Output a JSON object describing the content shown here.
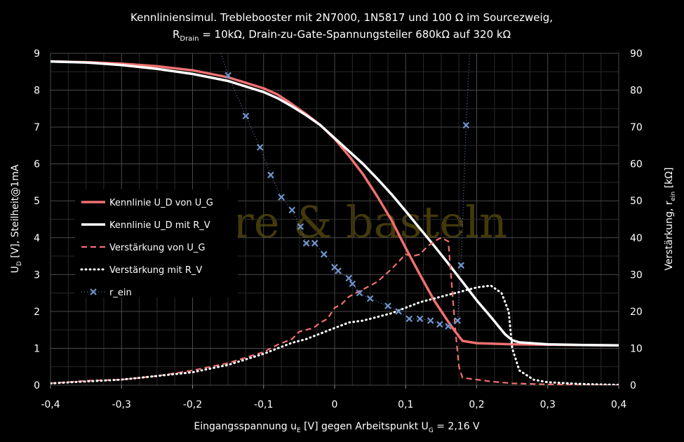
{
  "chart_data": {
    "type": "line",
    "title_line1": "Kennliniensimul. Treblebooster mit 2N7000, 1N5817 und 100 Ω im Sourcezweig,",
    "title_line2_pre": "R",
    "title_line2_sub": "Drain",
    "title_line2_post": " = 10kΩ, Drain-zu-Gate-Spannungsteiler 680kΩ auf 320 kΩ",
    "xlabel_pre": "Eingangsspannung u",
    "xlabel_sub1": "E",
    "xlabel_mid": " [V] gegen Arbeitspunkt U",
    "xlabel_sub2": "G",
    "xlabel_post": " = 2,16 V",
    "ylabel_left_pre": "U",
    "ylabel_left_sub": "D",
    "ylabel_left_post": " [V], Steilheit@1mA",
    "ylabel_right_pre": "Verstärkung, r",
    "ylabel_right_sub": "ein",
    "ylabel_right_post": " [kΩ]",
    "watermark": "gitarre & basteln",
    "xlim": [
      -0.4,
      0.4
    ],
    "ylim_left": [
      0,
      9
    ],
    "ylim_right": [
      0,
      90
    ],
    "x_ticks": [
      "-0,4",
      "-0,3",
      "-0,2",
      "-0,1",
      "0",
      "0,1",
      "0,2",
      "0,3",
      "0,4"
    ],
    "y_left_ticks": [
      "0",
      "1",
      "2",
      "3",
      "4",
      "5",
      "6",
      "7",
      "8",
      "9"
    ],
    "y_right_ticks": [
      "0",
      "10",
      "20",
      "30",
      "40",
      "50",
      "60",
      "70",
      "80",
      "90"
    ],
    "grid": true,
    "legend_position": "left-middle",
    "series": [
      {
        "name": "Kennlinie U_D von U_G",
        "axis": "left",
        "color": "#f07070",
        "style": "solid",
        "x": [
          -0.4,
          -0.35,
          -0.3,
          -0.25,
          -0.2,
          -0.15,
          -0.1,
          -0.08,
          -0.06,
          -0.04,
          -0.02,
          0,
          0.02,
          0.04,
          0.06,
          0.08,
          0.1,
          0.12,
          0.14,
          0.16,
          0.17,
          0.18,
          0.2,
          0.25,
          0.3,
          0.35,
          0.4
        ],
        "y": [
          8.78,
          8.76,
          8.72,
          8.65,
          8.54,
          8.35,
          8.05,
          7.88,
          7.62,
          7.35,
          7.05,
          6.68,
          6.22,
          5.72,
          5.12,
          4.48,
          3.72,
          3.0,
          2.3,
          1.72,
          1.45,
          1.2,
          1.14,
          1.11,
          1.1,
          1.09,
          1.08
        ]
      },
      {
        "name": "Kennlinie U_D mit R_V",
        "axis": "left",
        "color": "#ffffff",
        "style": "solid",
        "x": [
          -0.4,
          -0.35,
          -0.3,
          -0.25,
          -0.2,
          -0.15,
          -0.1,
          -0.08,
          -0.06,
          -0.04,
          -0.02,
          0,
          0.02,
          0.04,
          0.06,
          0.08,
          0.1,
          0.12,
          0.14,
          0.16,
          0.18,
          0.2,
          0.22,
          0.24,
          0.25,
          0.26,
          0.3,
          0.35,
          0.4
        ],
        "y": [
          8.78,
          8.75,
          8.68,
          8.58,
          8.44,
          8.25,
          7.95,
          7.78,
          7.56,
          7.32,
          7.05,
          6.7,
          6.35,
          6.0,
          5.6,
          5.18,
          4.72,
          4.25,
          3.78,
          3.3,
          2.8,
          2.3,
          1.85,
          1.38,
          1.22,
          1.16,
          1.11,
          1.09,
          1.08
        ]
      },
      {
        "name": "Verstärkung von U_G",
        "axis": "right",
        "color": "#f07070",
        "style": "dashed",
        "x": [
          -0.4,
          -0.35,
          -0.3,
          -0.25,
          -0.2,
          -0.15,
          -0.1,
          -0.08,
          -0.06,
          -0.05,
          -0.04,
          -0.03,
          -0.02,
          -0.01,
          0,
          0.01,
          0.02,
          0.03,
          0.04,
          0.06,
          0.08,
          0.1,
          0.11,
          0.12,
          0.13,
          0.14,
          0.15,
          0.16,
          0.17,
          0.175,
          0.18,
          0.2,
          0.22,
          0.25,
          0.3,
          0.35,
          0.4
        ],
        "y": [
          0.5,
          1.2,
          1.5,
          2.5,
          4.0,
          6.0,
          9.0,
          11.0,
          12.5,
          14.5,
          15.0,
          15.5,
          17.0,
          18.0,
          21.0,
          22.0,
          24.0,
          25.0,
          26.0,
          28.0,
          31.5,
          35.5,
          35.0,
          35.5,
          37.5,
          39.0,
          40.0,
          39.0,
          15.0,
          5.0,
          2.0,
          1.5,
          1.0,
          0.5,
          0.2,
          0.1,
          0.0
        ]
      },
      {
        "name": "Verstärkung mit R_V",
        "axis": "right",
        "color": "#ffffff",
        "style": "dotted",
        "x": [
          -0.4,
          -0.35,
          -0.3,
          -0.25,
          -0.2,
          -0.15,
          -0.1,
          -0.08,
          -0.06,
          -0.04,
          -0.02,
          0,
          0.02,
          0.04,
          0.06,
          0.08,
          0.1,
          0.12,
          0.14,
          0.16,
          0.18,
          0.2,
          0.22,
          0.235,
          0.245,
          0.25,
          0.26,
          0.28,
          0.3,
          0.35,
          0.4
        ],
        "y": [
          0.5,
          1.0,
          1.5,
          2.5,
          3.5,
          5.5,
          8.5,
          10.0,
          11.5,
          12.5,
          14.0,
          15.5,
          17.0,
          17.5,
          18.5,
          19.5,
          21.0,
          22.5,
          23.5,
          24.5,
          25.5,
          26.5,
          27.0,
          25.0,
          20.0,
          10.0,
          4.0,
          1.5,
          0.8,
          0.3,
          0.1
        ]
      },
      {
        "name": "r_ein",
        "axis": "right",
        "color": "#6f95cc",
        "style": "dotted-markers",
        "x": [
          -0.16,
          -0.15,
          -0.125,
          -0.105,
          -0.09,
          -0.075,
          -0.06,
          -0.048,
          -0.04,
          -0.028,
          -0.015,
          0,
          0.005,
          0.02,
          0.025,
          0.035,
          0.05,
          0.075,
          0.09,
          0.105,
          0.12,
          0.135,
          0.148,
          0.16,
          0.173,
          0.178,
          0.185,
          0.19
        ],
        "y": [
          90,
          84,
          73,
          64.5,
          57,
          51,
          47.5,
          43,
          38.5,
          38.5,
          35.5,
          32,
          31,
          29,
          27.5,
          25,
          23.5,
          21.5,
          20,
          18,
          18,
          17.5,
          16.5,
          16,
          17.5,
          32.5,
          70.5,
          90
        ],
        "markers_x": [
          -0.15,
          -0.125,
          -0.105,
          -0.09,
          -0.075,
          -0.06,
          -0.048,
          -0.04,
          -0.028,
          -0.015,
          0,
          0.005,
          0.02,
          0.025,
          0.035,
          0.05,
          0.075,
          0.09,
          0.105,
          0.12,
          0.135,
          0.148,
          0.16,
          0.173,
          0.178,
          0.185
        ],
        "markers_y": [
          84,
          73,
          64.5,
          57,
          51,
          47.5,
          43,
          38.5,
          38.5,
          35.5,
          32,
          31,
          29,
          27.5,
          25,
          23.5,
          21.5,
          20,
          18,
          18,
          17.5,
          16.5,
          16,
          17.5,
          32.5,
          70.5
        ]
      }
    ]
  }
}
